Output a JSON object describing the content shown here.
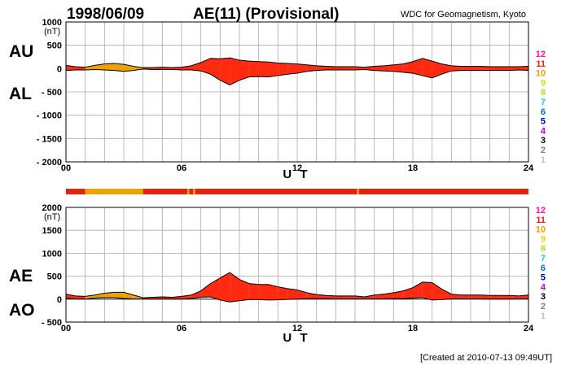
{
  "header": {
    "date": "1998/06/09",
    "title": "AE(11) (Provisional)",
    "organization": "WDC for Geomagnetism, Kyoto"
  },
  "footer": {
    "created": "[Created at 2010-07-13 09:49UT]"
  },
  "station_legend": {
    "labels": [
      "12",
      "11",
      "10",
      "9",
      "8",
      "7",
      "6",
      "5",
      "4",
      "3",
      "2",
      "1"
    ],
    "colors": [
      "#ff1493",
      "#e8200c",
      "#f0a000",
      "#e6d800",
      "#a8e61d",
      "#00d8d8",
      "#0070ff",
      "#0000c8",
      "#c800c8",
      "#000000",
      "#808080",
      "#c0c0c0"
    ]
  },
  "colors": {
    "fill_main": "#ff2a10",
    "fill_quiet": "#f0a000",
    "outline": "#000000",
    "grid": "#aaaaaa"
  },
  "station_bar": {
    "segments": [
      {
        "from": 0.0,
        "to": 1.0,
        "station": "11"
      },
      {
        "from": 1.0,
        "to": 4.0,
        "station": "10"
      },
      {
        "from": 4.0,
        "to": 6.3,
        "station": "11"
      },
      {
        "from": 6.3,
        "to": 6.4,
        "station": "10"
      },
      {
        "from": 6.4,
        "to": 6.6,
        "station": "11"
      },
      {
        "from": 6.6,
        "to": 6.7,
        "station": "10"
      },
      {
        "from": 6.7,
        "to": 15.1,
        "station": "11"
      },
      {
        "from": 15.1,
        "to": 15.2,
        "station": "10"
      },
      {
        "from": 15.2,
        "to": 24.0,
        "station": "11"
      }
    ]
  },
  "chart_data": [
    {
      "type": "area",
      "panel": "AU/AL",
      "labels": {
        "upper": "AU",
        "lower": "AL"
      },
      "ylabel": "(nT)",
      "xlabel": "U T",
      "xlim": [
        0,
        24
      ],
      "ylim": [
        -2000,
        1000
      ],
      "yticks": [
        1000,
        500,
        0,
        -500,
        -1000,
        -1500,
        -2000
      ],
      "ytick_labels": [
        "1000",
        "500",
        "0",
        "- 500",
        "- 1000",
        "- 1500",
        "- 2000"
      ],
      "xticks": [
        0,
        6,
        12,
        18,
        24
      ],
      "xtick_labels": [
        "00",
        "06",
        "12",
        "18",
        "24"
      ],
      "grid": true,
      "x": [
        0,
        0.5,
        1,
        1.5,
        2,
        2.5,
        3,
        3.5,
        4,
        4.5,
        5,
        5.5,
        6,
        6.5,
        7,
        7.5,
        8,
        8.5,
        9,
        9.5,
        10,
        10.5,
        11,
        11.5,
        12,
        12.5,
        13,
        13.5,
        14,
        14.5,
        15,
        15.5,
        16,
        16.5,
        17,
        17.5,
        18,
        18.5,
        19,
        19.5,
        20,
        20.5,
        21,
        21.5,
        22,
        22.5,
        23,
        23.5,
        24
      ],
      "series": [
        {
          "name": "AU",
          "values": [
            70,
            40,
            30,
            70,
            100,
            110,
            90,
            50,
            20,
            20,
            30,
            20,
            30,
            60,
            130,
            220,
            210,
            230,
            180,
            160,
            150,
            140,
            120,
            110,
            100,
            80,
            60,
            50,
            40,
            40,
            40,
            30,
            50,
            60,
            80,
            100,
            150,
            220,
            160,
            100,
            60,
            50,
            50,
            50,
            40,
            40,
            40,
            40,
            50
          ]
        },
        {
          "name": "AL",
          "values": [
            -40,
            -30,
            -30,
            -20,
            -30,
            -40,
            -60,
            -40,
            -10,
            -20,
            -20,
            -20,
            -30,
            -30,
            -50,
            -120,
            -250,
            -350,
            -250,
            -180,
            -170,
            -180,
            -150,
            -120,
            -100,
            -60,
            -40,
            -30,
            -30,
            -30,
            -30,
            -20,
            -40,
            -50,
            -60,
            -80,
            -100,
            -150,
            -200,
            -120,
            -50,
            -40,
            -40,
            -40,
            -40,
            -40,
            -40,
            -30,
            -40
          ]
        }
      ]
    },
    {
      "type": "area",
      "panel": "AE/AO",
      "labels": {
        "upper": "AE",
        "lower": "AO"
      },
      "ylabel": "(nT)",
      "xlabel": "U T",
      "xlim": [
        0,
        24
      ],
      "ylim": [
        -500,
        2000
      ],
      "yticks": [
        2000,
        1500,
        1000,
        500,
        0,
        -500
      ],
      "ytick_labels": [
        "2000",
        "1500",
        "1000",
        "500",
        "0",
        "- 500"
      ],
      "xticks": [
        0,
        6,
        12,
        18,
        24
      ],
      "xtick_labels": [
        "00",
        "06",
        "12",
        "18",
        "24"
      ],
      "grid": true,
      "x": [
        0,
        0.5,
        1,
        1.5,
        2,
        2.5,
        3,
        3.5,
        4,
        4.5,
        5,
        5.5,
        6,
        6.5,
        7,
        7.5,
        8,
        8.5,
        9,
        9.5,
        10,
        10.5,
        11,
        11.5,
        12,
        12.5,
        13,
        13.5,
        14,
        14.5,
        15,
        15.5,
        16,
        16.5,
        17,
        17.5,
        18,
        18.5,
        19,
        19.5,
        20,
        20.5,
        21,
        21.5,
        22,
        22.5,
        23,
        23.5,
        24
      ],
      "series": [
        {
          "name": "AE",
          "values": [
            110,
            70,
            60,
            90,
            130,
            150,
            150,
            90,
            30,
            40,
            50,
            40,
            60,
            90,
            180,
            340,
            460,
            580,
            430,
            340,
            320,
            320,
            270,
            230,
            200,
            140,
            100,
            80,
            70,
            70,
            70,
            50,
            90,
            110,
            140,
            180,
            250,
            370,
            360,
            220,
            110,
            90,
            90,
            90,
            80,
            80,
            80,
            70,
            90
          ]
        },
        {
          "name": "AO",
          "values": [
            15,
            5,
            0,
            25,
            35,
            35,
            15,
            5,
            5,
            0,
            5,
            0,
            0,
            15,
            40,
            50,
            -20,
            -60,
            -35,
            -10,
            -10,
            -20,
            -15,
            -5,
            0,
            10,
            10,
            10,
            5,
            5,
            5,
            5,
            5,
            5,
            10,
            10,
            25,
            35,
            -20,
            -10,
            5,
            5,
            5,
            5,
            0,
            0,
            0,
            5,
            5
          ]
        }
      ]
    }
  ]
}
